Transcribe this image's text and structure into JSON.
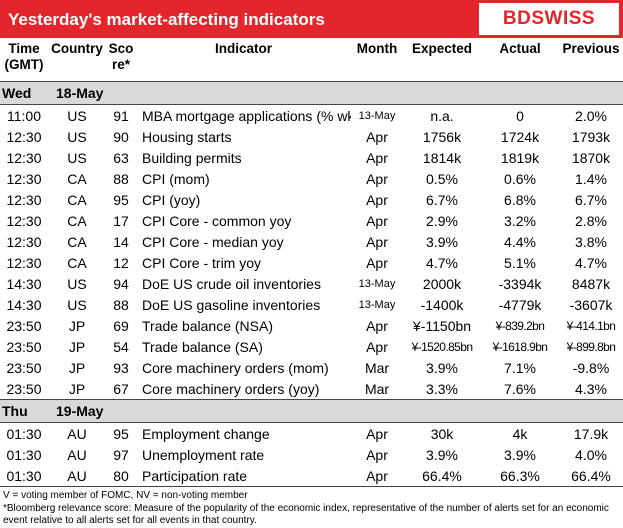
{
  "header": {
    "title": "Yesterday's market-affecting indicators",
    "logo": "BDSWISS"
  },
  "table": {
    "columns": [
      "Time (GMT)",
      "Country",
      "Score*",
      "Indicator",
      "Month",
      "Expected",
      "Actual",
      "Previous"
    ],
    "sections": [
      {
        "day": "Wed",
        "date": "18-May",
        "rows": [
          [
            "11:00",
            "US",
            91,
            "MBA mortgage applications (% wk)",
            "13-May",
            "n.a.",
            "0",
            "2.0%"
          ],
          [
            "12:30",
            "US",
            90,
            "Housing starts",
            "Apr",
            "1756k",
            "1724k",
            "1793k"
          ],
          [
            "12:30",
            "US",
            63,
            "Building permits",
            "Apr",
            "1814k",
            "1819k",
            "1870k"
          ],
          [
            "12:30",
            "CA",
            88,
            "CPI (mom)",
            "Apr",
            "0.5%",
            "0.6%",
            "1.4%"
          ],
          [
            "12:30",
            "CA",
            95,
            "CPI (yoy)",
            "Apr",
            "6.7%",
            "6.8%",
            "6.7%"
          ],
          [
            "12:30",
            "CA",
            17,
            "CPI Core - common yoy",
            "Apr",
            "2.9%",
            "3.2%",
            "2.8%"
          ],
          [
            "12:30",
            "CA",
            14,
            "CPI Core - median yoy",
            "Apr",
            "3.9%",
            "4.4%",
            "3.8%"
          ],
          [
            "12:30",
            "CA",
            12,
            "CPI Core - trim yoy",
            "Apr",
            "4.7%",
            "5.1%",
            "4.7%"
          ],
          [
            "14:30",
            "US",
            94,
            "DoE US crude oil inventories",
            "13-May",
            "2000k",
            "-3394k",
            "8487k"
          ],
          [
            "14:30",
            "US",
            88,
            "DoE US gasoline inventories",
            "13-May",
            "-1400k",
            "-4779k",
            "-3607k"
          ],
          [
            "23:50",
            "JP",
            69,
            "Trade balance (NSA)",
            "Apr",
            "¥-1150bn",
            "¥-839.2bn",
            "¥-414.1bn"
          ],
          [
            "23:50",
            "JP",
            54,
            "Trade balance (SA)",
            "Apr",
            "¥-1520.85bn",
            "¥-1618.9bn",
            "¥-899.8bn"
          ],
          [
            "23:50",
            "JP",
            93,
            "Core machinery orders (mom)",
            "Mar",
            "3.9%",
            "7.1%",
            "-9.8%"
          ],
          [
            "23:50",
            "JP",
            67,
            "Core machinery orders (yoy)",
            "Mar",
            "3.3%",
            "7.6%",
            "4.3%"
          ]
        ]
      },
      {
        "day": "Thu",
        "date": "19-May",
        "rows": [
          [
            "01:30",
            "AU",
            95,
            "Employment change",
            "Apr",
            "30k",
            "4k",
            "17.9k"
          ],
          [
            "01:30",
            "AU",
            97,
            "Unemployment rate",
            "Apr",
            "3.9%",
            "3.9%",
            "4.0%"
          ],
          [
            "01:30",
            "AU",
            80,
            "Participation rate",
            "Apr",
            "66.4%",
            "66.3%",
            "66.4%"
          ]
        ]
      }
    ]
  },
  "footnotes": [
    "V = voting member of FOMC, NV = non-voting member",
    "*Bloomberg relevance score:  Measure of the popularity of the economic index, representative of the number of alerts set for an economic event relative to all alerts set for all events in that country."
  ]
}
